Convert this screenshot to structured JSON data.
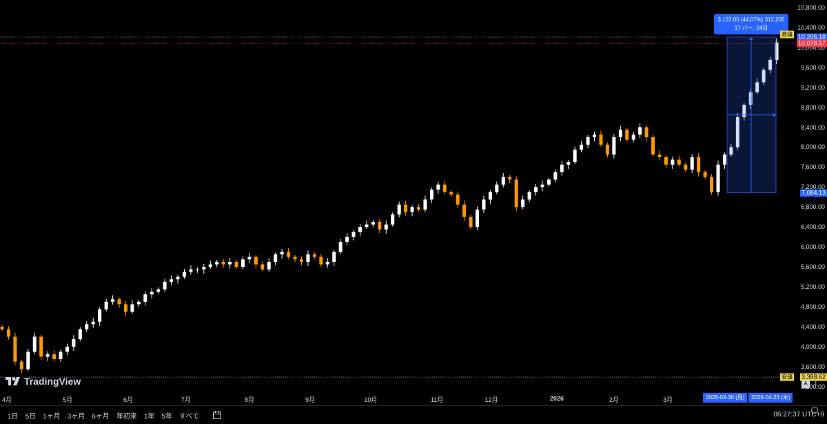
{
  "chart_data": {
    "type": "candlestick",
    "y_ticks": [
      "10,800.00",
      "10,400.00",
      "10,000.00",
      "9,600.00",
      "9,200.00",
      "8,800.00",
      "8,400.00",
      "8,000.00",
      "7,600.00",
      "7,200.00",
      "6,800.00",
      "6,400.00",
      "6,000.00",
      "5,600.00",
      "5,200.00",
      "4,800.00",
      "4,400.00",
      "4,000.00",
      "3,600.00",
      "3,200.00"
    ],
    "x_ticks": [
      "4月",
      "5月",
      "6月",
      "7月",
      "8月",
      "9月",
      "10月",
      "11月",
      "12月",
      "2026",
      "2月",
      "3月"
    ],
    "ylim": [
      3100,
      10950
    ],
    "price_scale": "linear",
    "bar_colors": {
      "up": "#ffffff",
      "down": "#ff9800"
    },
    "high_label": "10,206.18",
    "high_tag": "高値",
    "current_label": "10,078.57",
    "low_label": "3,388.62",
    "low_tag": "安値",
    "range_low_label": "7,084.13",
    "measure_start_value": 7084.13,
    "measure_end_value": 10206.18,
    "close_series": [
      4350,
      4200,
      3700,
      3550,
      3900,
      4200,
      3800,
      3850,
      3750,
      3900,
      4000,
      4150,
      4350,
      4450,
      4500,
      4750,
      4900,
      4950,
      4850,
      4700,
      4850,
      4900,
      5050,
      5100,
      5150,
      5300,
      5350,
      5400,
      5500,
      5550,
      5550,
      5600,
      5650,
      5700,
      5650,
      5700,
      5600,
      5750,
      5800,
      5650,
      5550,
      5700,
      5850,
      5900,
      5800,
      5750,
      5700,
      5850,
      5800,
      5650,
      5700,
      5900,
      6100,
      6200,
      6300,
      6400,
      6450,
      6500,
      6350,
      6450,
      6650,
      6850,
      6700,
      6800,
      6750,
      6950,
      7150,
      7250,
      7100,
      7050,
      6850,
      6600,
      6400,
      6750,
      6950,
      7100,
      7250,
      7400,
      7350,
      6800,
      6950,
      7100,
      7200,
      7250,
      7350,
      7500,
      7650,
      7700,
      7950,
      8050,
      8200,
      8250,
      8050,
      7850,
      8200,
      8350,
      8150,
      8250,
      8400,
      8200,
      7850,
      7800,
      7650,
      7750,
      7650,
      7550,
      7800,
      7500,
      7400,
      7100,
      7650,
      7850,
      8000,
      8600,
      8850,
      9100,
      9300,
      9550,
      9750,
      10100
    ]
  },
  "tooltip": {
    "line1": "3,122.05 (44.07%) 312,205",
    "line2": "17 バー, 24日"
  },
  "date_range": {
    "start": "2026-03-30 (月)",
    "end": "2026-04-23 (木)"
  },
  "logo_text": "TradingView",
  "axis_buttons": {
    "auto": "A",
    "log": "L"
  },
  "ranges": [
    "1日",
    "5日",
    "1ヶ月",
    "3ヶ月",
    "6ヶ月",
    "年初来",
    "1年",
    "5年",
    "すべて"
  ],
  "clock": "06:27:37 UTC+9"
}
